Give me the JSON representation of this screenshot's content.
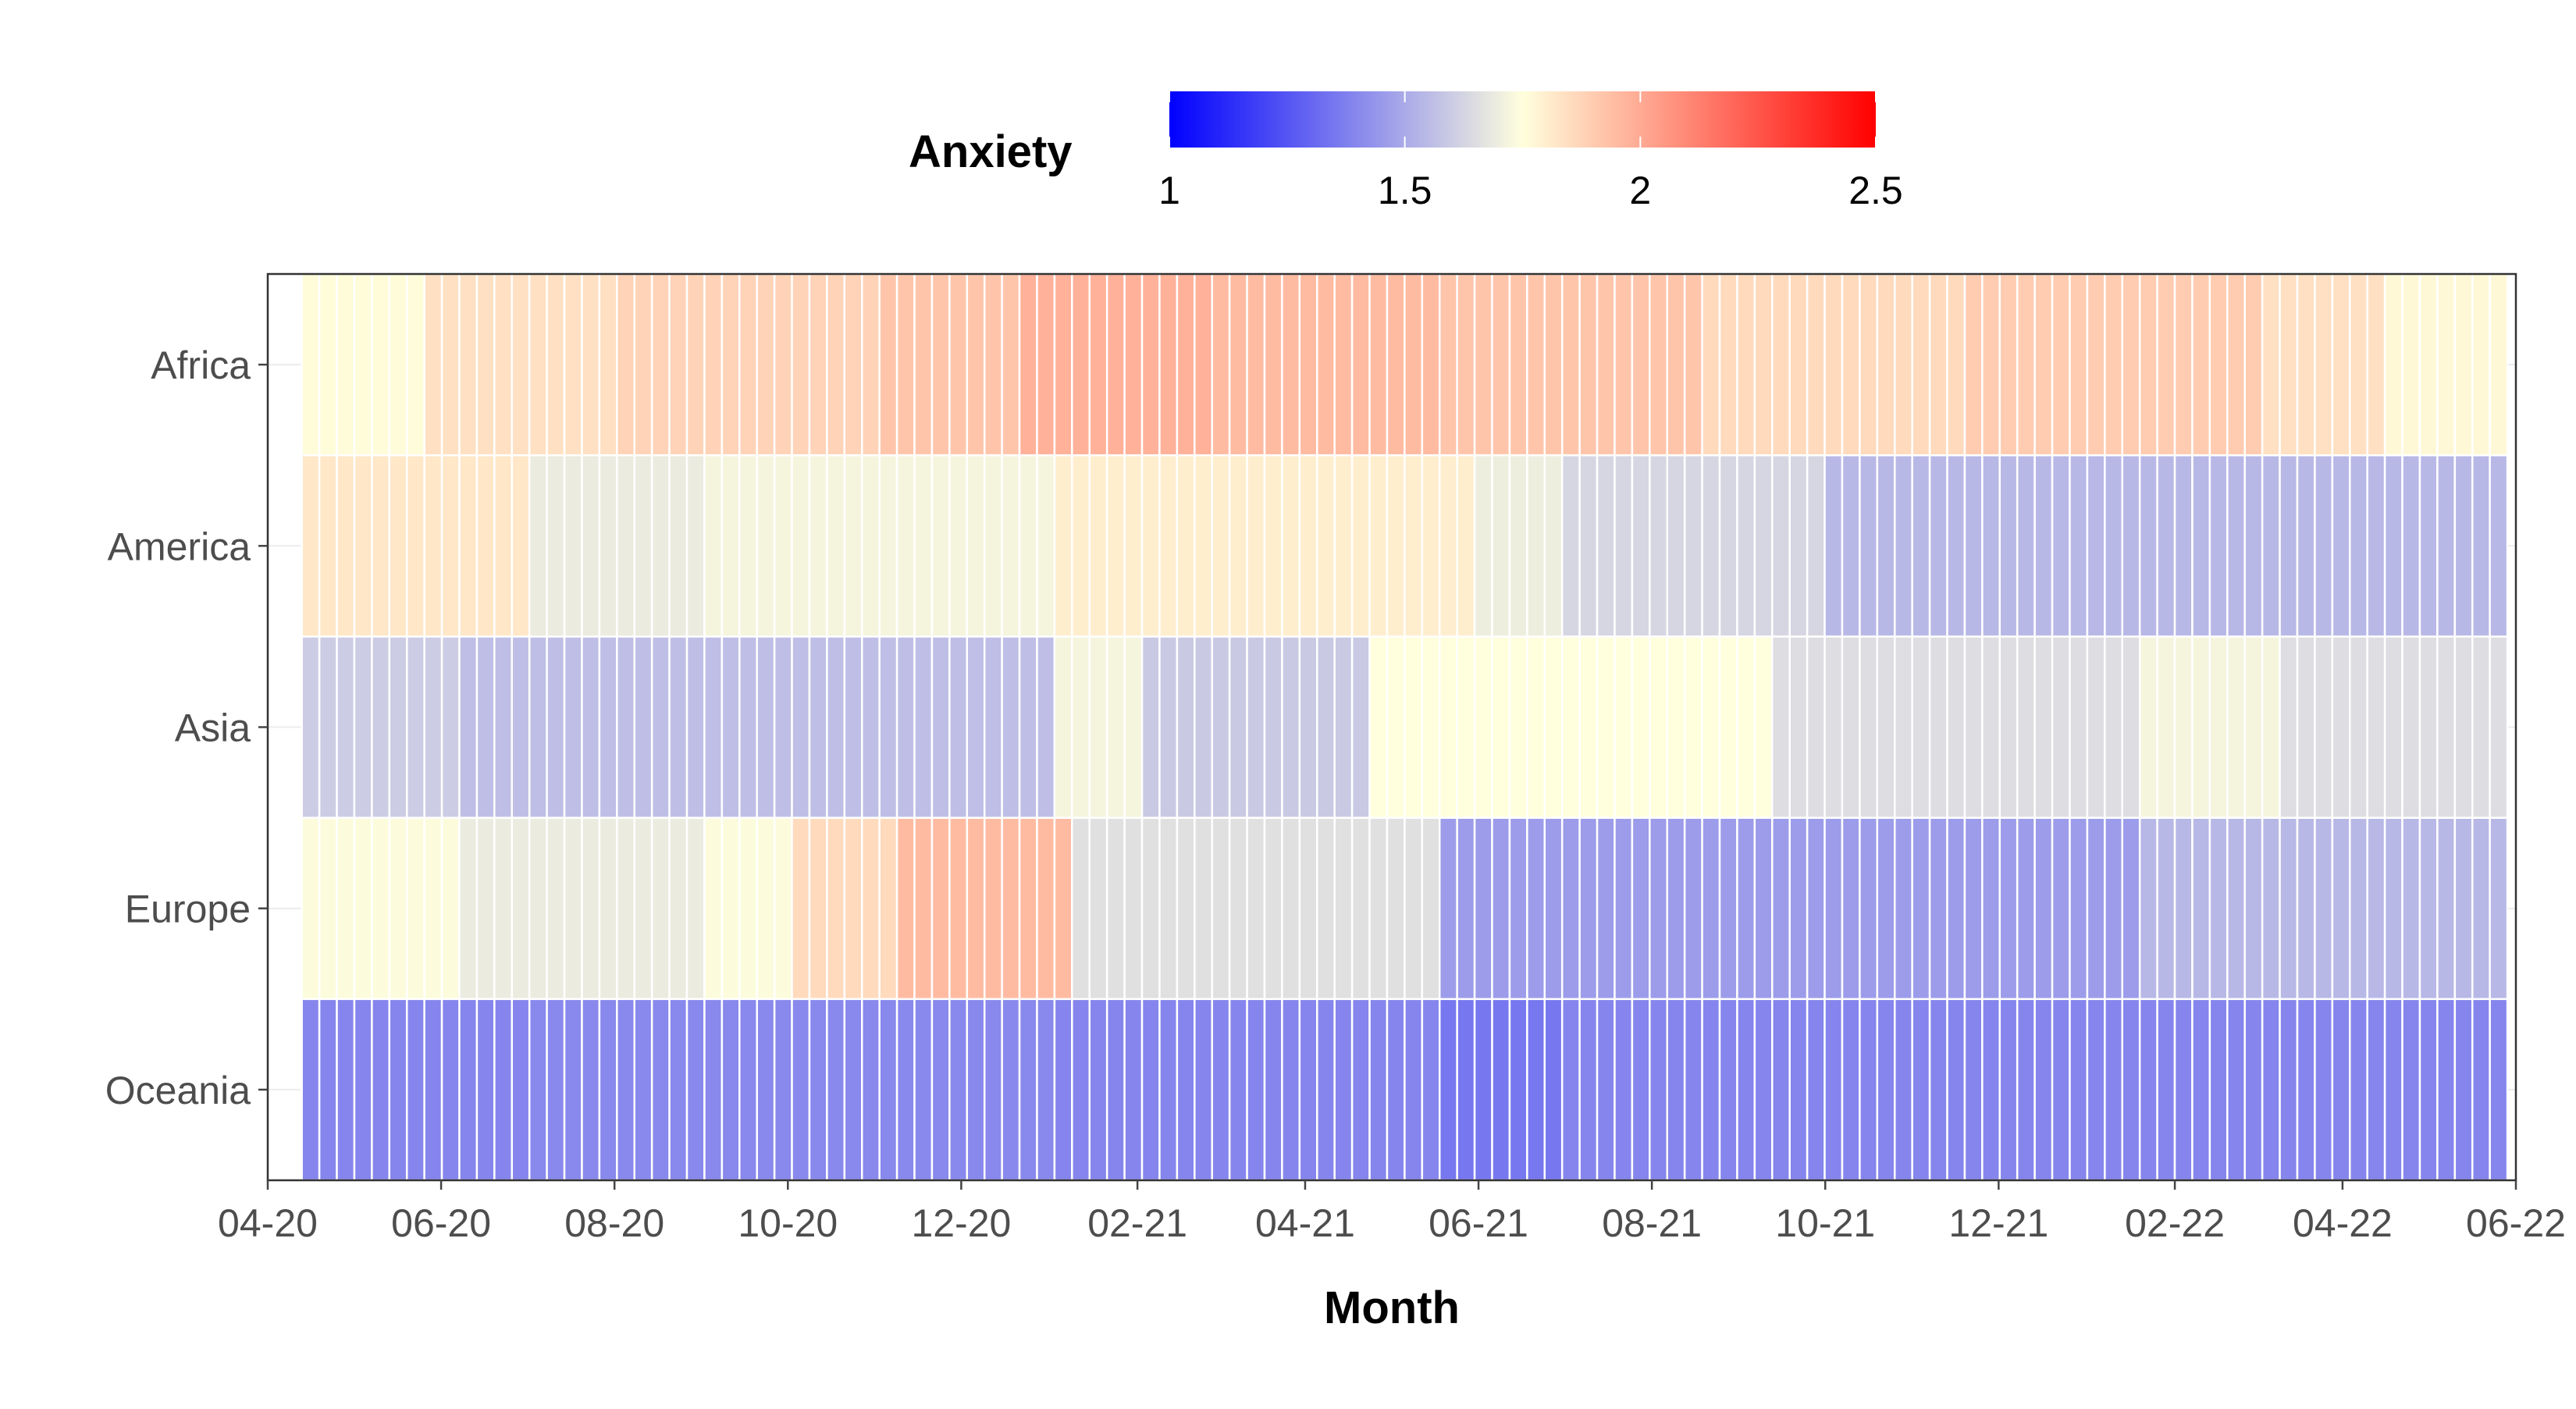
{
  "chart_data": {
    "type": "heatmap",
    "title": "",
    "xlabel": "Month",
    "ylabel": "",
    "legend": {
      "title": "Anxiety",
      "position": "top",
      "range": [
        1,
        2.5
      ],
      "ticks": [
        "1",
        "1.5",
        "2",
        "2.5"
      ],
      "colors": {
        "low": "#0000ff",
        "mid": "#ffffdd",
        "high": "#ff0000",
        "midpoint": 1.75
      }
    },
    "grid": true,
    "x_axis": {
      "type": "date",
      "range": [
        "2020-04-01",
        "2022-06-01"
      ],
      "tick_labels": [
        "04-20",
        "06-20",
        "08-20",
        "10-20",
        "12-20",
        "02-21",
        "04-21",
        "06-21",
        "08-21",
        "10-21",
        "12-21",
        "02-22",
        "04-22",
        "06-22"
      ]
    },
    "x_cells": {
      "start": "2020-04-13",
      "end": "2022-05-29",
      "count": 126
    },
    "rows": [
      {
        "name": "Oceania",
        "segments": [
          {
            "from": "2020-04-13",
            "to": "2020-06-30",
            "value": 1.39
          },
          {
            "from": "2020-06-30",
            "to": "2020-12-31",
            "value": 1.4
          },
          {
            "from": "2020-12-31",
            "to": "2021-05-20",
            "value": 1.39
          },
          {
            "from": "2021-05-20",
            "to": "2021-07-01",
            "value": 1.35
          },
          {
            "from": "2021-07-01",
            "to": "2022-05-29",
            "value": 1.39
          }
        ]
      },
      {
        "name": "Europe",
        "segments": [
          {
            "from": "2020-04-13",
            "to": "2020-06-10",
            "value": 1.74
          },
          {
            "from": "2020-06-10",
            "to": "2020-09-01",
            "value": 1.69
          },
          {
            "from": "2020-09-01",
            "to": "2020-10-01",
            "value": 1.74
          },
          {
            "from": "2020-10-01",
            "to": "2020-11-10",
            "value": 1.86
          },
          {
            "from": "2020-11-10",
            "to": "2021-01-06",
            "value": 1.95
          },
          {
            "from": "2021-01-06",
            "to": "2021-05-20",
            "value": 1.66
          },
          {
            "from": "2021-05-20",
            "to": "2022-01-20",
            "value": 1.46
          },
          {
            "from": "2022-01-20",
            "to": "2022-05-29",
            "value": 1.54
          }
        ]
      },
      {
        "name": "Asia",
        "segments": [
          {
            "from": "2020-04-13",
            "to": "2020-06-10",
            "value": 1.6
          },
          {
            "from": "2020-06-10",
            "to": "2021-01-04",
            "value": 1.56
          },
          {
            "from": "2021-01-04",
            "to": "2021-02-01",
            "value": 1.72
          },
          {
            "from": "2021-02-01",
            "to": "2021-04-21",
            "value": 1.59
          },
          {
            "from": "2021-04-21",
            "to": "2021-09-10",
            "value": 1.75
          },
          {
            "from": "2021-09-10",
            "to": "2022-01-20",
            "value": 1.65
          },
          {
            "from": "2022-01-20",
            "to": "2022-03-10",
            "value": 1.72
          },
          {
            "from": "2022-03-10",
            "to": "2022-05-29",
            "value": 1.65
          }
        ]
      },
      {
        "name": "America",
        "segments": [
          {
            "from": "2020-04-13",
            "to": "2020-07-01",
            "value": 1.82
          },
          {
            "from": "2020-07-01",
            "to": "2020-09-01",
            "value": 1.69
          },
          {
            "from": "2020-09-01",
            "to": "2021-01-01",
            "value": 1.72
          },
          {
            "from": "2021-01-01",
            "to": "2021-05-30",
            "value": 1.8
          },
          {
            "from": "2021-05-30",
            "to": "2021-07-01",
            "value": 1.7
          },
          {
            "from": "2021-07-01",
            "to": "2021-10-01",
            "value": 1.63
          },
          {
            "from": "2021-10-01",
            "to": "2022-05-29",
            "value": 1.54
          }
        ]
      },
      {
        "name": "Africa",
        "segments": [
          {
            "from": "2020-04-13",
            "to": "2020-05-25",
            "value": 1.76
          },
          {
            "from": "2020-05-25",
            "to": "2020-08-01",
            "value": 1.84
          },
          {
            "from": "2020-08-01",
            "to": "2020-11-01",
            "value": 1.88
          },
          {
            "from": "2020-11-01",
            "to": "2020-12-20",
            "value": 1.92
          },
          {
            "from": "2020-12-20",
            "to": "2021-03-01",
            "value": 1.98
          },
          {
            "from": "2021-03-01",
            "to": "2021-05-20",
            "value": 1.95
          },
          {
            "from": "2021-05-20",
            "to": "2021-08-20",
            "value": 1.92
          },
          {
            "from": "2021-08-20",
            "to": "2021-11-20",
            "value": 1.86
          },
          {
            "from": "2021-11-20",
            "to": "2022-03-01",
            "value": 1.9
          },
          {
            "from": "2022-03-01",
            "to": "2022-04-15",
            "value": 1.84
          },
          {
            "from": "2022-04-15",
            "to": "2022-05-29",
            "value": 1.77
          }
        ]
      }
    ]
  }
}
